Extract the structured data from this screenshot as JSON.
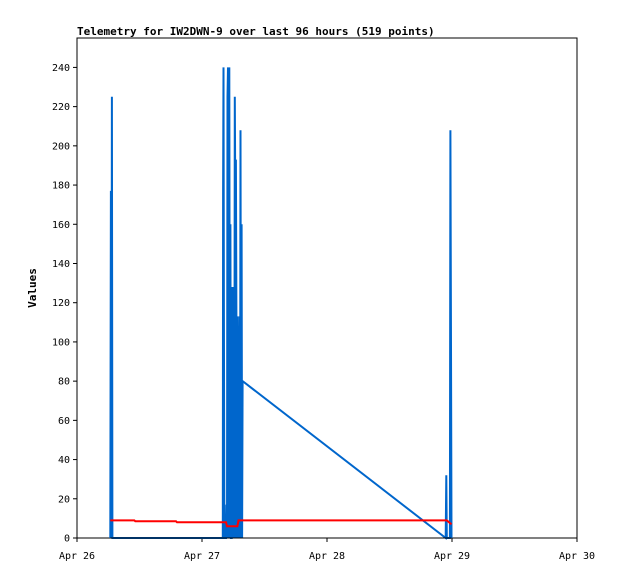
{
  "chart_data": {
    "type": "line",
    "title": "Telemetry for IW2DWN-9 over last 96 hours (519 points)",
    "xlabel": "",
    "ylabel": "Values",
    "x_unit": "hours since Apr 26 00:00",
    "xlim": [
      0,
      96
    ],
    "ylim": [
      0,
      255
    ],
    "x_ticks": [
      {
        "x": 0,
        "label": "Apr 26"
      },
      {
        "x": 24,
        "label": "Apr 27"
      },
      {
        "x": 48,
        "label": "Apr 28"
      },
      {
        "x": 72,
        "label": "Apr 29"
      },
      {
        "x": 96,
        "label": "Apr 30"
      }
    ],
    "y_ticks": [
      0,
      20,
      40,
      60,
      80,
      100,
      120,
      140,
      160,
      180,
      200,
      220,
      240
    ],
    "grid": false,
    "series": [
      {
        "color": "#0066cc",
        "points": [
          [
            6.4,
            0
          ],
          [
            6.5,
            177
          ],
          [
            6.6,
            0
          ],
          [
            6.7,
            225
          ],
          [
            6.8,
            0
          ],
          [
            28.0,
            0
          ],
          [
            28.05,
            177
          ],
          [
            28.12,
            240
          ],
          [
            28.2,
            113
          ],
          [
            28.3,
            0
          ],
          [
            28.6,
            0
          ],
          [
            28.7,
            17
          ],
          [
            28.8,
            0
          ],
          [
            28.9,
            225
          ],
          [
            29.0,
            240
          ],
          [
            29.1,
            0
          ],
          [
            29.15,
            145
          ],
          [
            29.25,
            240
          ],
          [
            29.35,
            0
          ],
          [
            29.45,
            160
          ],
          [
            29.55,
            0
          ],
          [
            29.7,
            0
          ],
          [
            29.8,
            128
          ],
          [
            29.9,
            0
          ],
          [
            30.0,
            128
          ],
          [
            30.1,
            113
          ],
          [
            30.2,
            0
          ],
          [
            30.3,
            225
          ],
          [
            30.35,
            193
          ],
          [
            30.45,
            0
          ],
          [
            30.5,
            193
          ],
          [
            30.6,
            113
          ],
          [
            30.7,
            0
          ],
          [
            30.8,
            113
          ],
          [
            30.9,
            49
          ],
          [
            31.0,
            0
          ],
          [
            31.1,
            65
          ],
          [
            31.2,
            113
          ],
          [
            31.3,
            0
          ],
          [
            31.4,
            208
          ],
          [
            31.5,
            0
          ],
          [
            31.6,
            160
          ],
          [
            31.7,
            0
          ],
          [
            31.8,
            80
          ],
          [
            70.8,
            0
          ],
          [
            70.9,
            32
          ],
          [
            71.0,
            0
          ],
          [
            71.6,
            0
          ],
          [
            71.7,
            208
          ],
          [
            71.8,
            97
          ],
          [
            71.9,
            0
          ]
        ]
      },
      {
        "color": "#ff0000",
        "points": [
          [
            6.4,
            9
          ],
          [
            11.0,
            9
          ],
          [
            11.2,
            8.5
          ],
          [
            19.0,
            8.5
          ],
          [
            19.2,
            8
          ],
          [
            28.0,
            8
          ],
          [
            28.6,
            8
          ],
          [
            28.8,
            6
          ],
          [
            30.8,
            6
          ],
          [
            31.0,
            9
          ],
          [
            53.0,
            9
          ],
          [
            71.0,
            9
          ],
          [
            71.9,
            7
          ]
        ]
      },
      {
        "color": "#000000",
        "points": [
          [
            6.4,
            0
          ],
          [
            31.8,
            0
          ],
          [
            71.9,
            0
          ]
        ]
      }
    ]
  }
}
